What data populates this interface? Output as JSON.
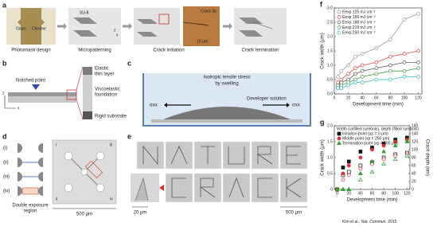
{
  "panels": {
    "a": {
      "letter": "a",
      "glass": "Glass",
      "chrome": "Chrome",
      "step1": "Photomask design",
      "su8": "SU-8",
      "step2": "Micropatterning",
      "z": "z",
      "x": "x",
      "crack_tip": "Crack tip",
      "scale": "10 μm",
      "step3": "Crack initiation",
      "step4": "Crack termination"
    },
    "b": {
      "letter": "b",
      "notch": "Notched point",
      "layer": [
        "Elastic",
        "thin layer"
      ],
      "foundation": [
        "Viscoelastic",
        "foundation"
      ],
      "substrate": "Rigid substrate",
      "z": "z",
      "x": "x"
    },
    "c": {
      "letter": "c",
      "stress": "Isotropic tensile stress",
      "swelling": "by swelling",
      "solution": "Developer solution",
      "sigma_left": "σxx",
      "sigma_right": "σxx"
    },
    "d": {
      "letter": "d",
      "steps": [
        "(i)",
        "(ii)",
        "(iii)",
        "(iv)"
      ],
      "region": [
        "Double exposure",
        "region"
      ],
      "corners": [
        "i",
        "ii",
        "iii",
        "iv"
      ],
      "scale": "500 μm"
    },
    "e": {
      "letter": "e",
      "scale_small": "20 μm",
      "scale_large": "500 μm"
    }
  },
  "citation": {
    "authors": "Kim et al.,",
    "journal": "Nat. Commun.",
    "year": "2015"
  },
  "chart_data": [
    {
      "type": "scatter",
      "letter": "f",
      "xlabel": "Development time (min)",
      "ylabel": "Crack width (μm)",
      "x": [
        5,
        10,
        20,
        30,
        40,
        60,
        80,
        100,
        120
      ],
      "xlim": [
        0,
        125
      ],
      "xticks": [
        0,
        20,
        40,
        60,
        80,
        100,
        120
      ],
      "ylim": [
        0,
        3.0
      ],
      "yticks": [
        {
          "value": 0,
          "label": "0.0"
        },
        0.5,
        {
          "value": 1,
          "label": "1.0"
        },
        1.5,
        {
          "value": 2,
          "label": "2.0"
        },
        2.5,
        {
          "value": 3,
          "label": "3.0"
        }
      ],
      "series": [
        {
          "name": "Eexp 125 mJ cm⁻²",
          "color": "#999999",
          "values": [
            0.6,
            0.8,
            1.0,
            1.3,
            1.4,
            1.6,
            1.9,
            2.6,
            2.8
          ]
        },
        {
          "name": "Eexp 156 mJ cm⁻²",
          "color": "#e04040",
          "values": [
            0.4,
            0.5,
            0.7,
            0.9,
            1.0,
            1.1,
            1.3,
            1.4,
            1.5
          ]
        },
        {
          "name": "Eexp 188 mJ cm⁻²",
          "color": "#555555",
          "values": [
            0.3,
            0.4,
            0.5,
            0.7,
            0.8,
            0.9,
            1.0,
            1.1,
            1.1
          ]
        },
        {
          "name": "Eexp 219 mJ cm⁻²",
          "color": "#40a040",
          "values": [
            0.2,
            0.3,
            0.4,
            0.5,
            0.6,
            0.7,
            0.8,
            0.8,
            0.9
          ]
        },
        {
          "name": "Eexp 250 mJ cm⁻²",
          "color": "#30b8c8",
          "values": [
            0.2,
            0.2,
            0.3,
            0.4,
            0.4,
            0.5,
            0.5,
            0.6,
            0.6
          ]
        }
      ]
    },
    {
      "type": "scatter",
      "letter": "g",
      "xlabel": "Development time (min)",
      "ylabel": "Crack width (μm)",
      "y2label": "Crack depth (nm)",
      "legend_title": "Width (unfilled symbols), depth (filled symbols)",
      "x": [
        0,
        10,
        20,
        40,
        60,
        80,
        100,
        120
      ],
      "xlim": [
        -5,
        125
      ],
      "xticks": [
        0,
        20,
        40,
        60,
        80,
        100,
        120
      ],
      "ylim": [
        0,
        2.0
      ],
      "yticks": [
        0,
        0.5,
        {
          "value": 1,
          "label": "1.0"
        },
        1.5,
        {
          "value": 2,
          "label": "2.0"
        }
      ],
      "y2lim": [
        0,
        160
      ],
      "y2ticks": [
        0,
        20,
        40,
        60,
        80,
        100,
        120,
        140,
        160
      ],
      "groups": [
        {
          "name": "Initiation point (xp = 0 μm)",
          "color": "#111111",
          "marker": "square",
          "width": [
            0,
            0.45,
            0.55,
            0.75,
            0.85,
            1.0,
            1.1,
            1.15
          ],
          "depth": [
            0,
            55,
            70,
            95,
            105,
            115,
            125,
            130
          ]
        },
        {
          "name": "Middle point (xp = 250 μm)",
          "color": "#e03030",
          "marker": "circle",
          "width": [
            0,
            0.3,
            0.45,
            0.65,
            0.8,
            0.95,
            1.05,
            1.1
          ],
          "depth": [
            0,
            40,
            60,
            80,
            100,
            110,
            120,
            125
          ]
        },
        {
          "name": "Termination point (xp = 500 μm)",
          "color": "#30a030",
          "marker": "triangle",
          "width": [
            0,
            0,
            0,
            0.3,
            0.55,
            0.8,
            0.95,
            1.05
          ],
          "depth": [
            0,
            0,
            0,
            40,
            70,
            95,
            110,
            120
          ]
        }
      ]
    }
  ]
}
